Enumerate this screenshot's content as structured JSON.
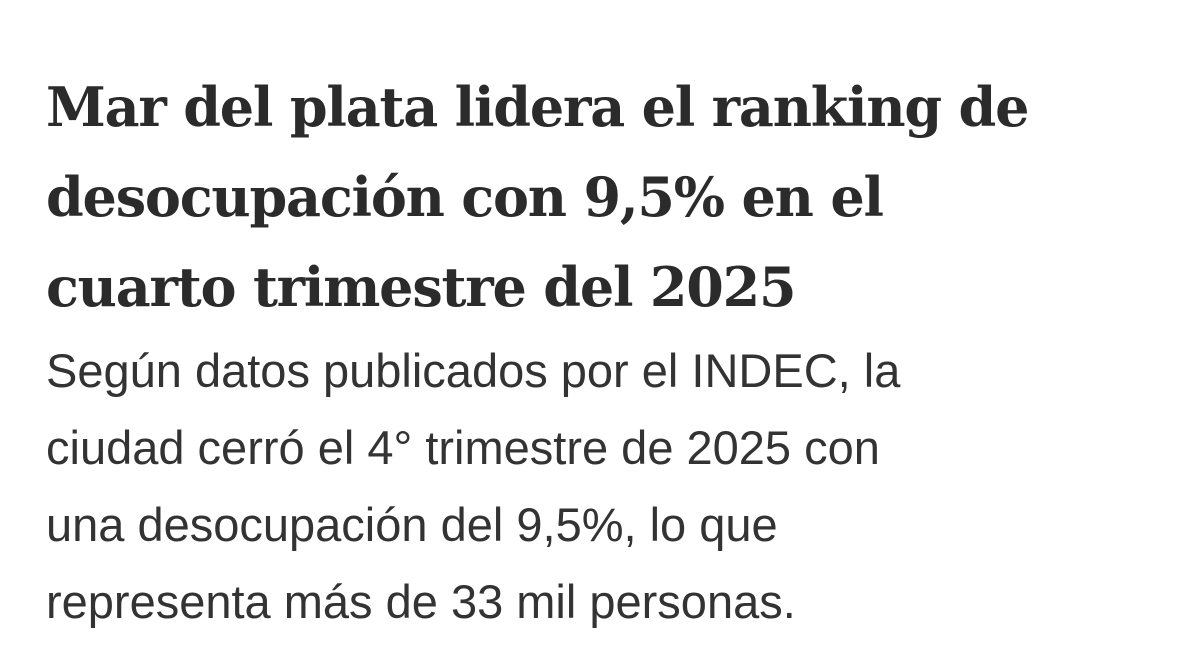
{
  "article": {
    "headline_lines": [
      "Mar del plata lidera el ranking de",
      "desocupación con 9,5% en el",
      "cuarto trimestre del 2025"
    ],
    "lead_lines": [
      "Según datos publicados por el INDEC, la",
      "ciudad cerró el 4° trimestre de 2025 con",
      "una desocupación del 9,5%, lo que",
      "representa más de 33 mil personas."
    ]
  }
}
